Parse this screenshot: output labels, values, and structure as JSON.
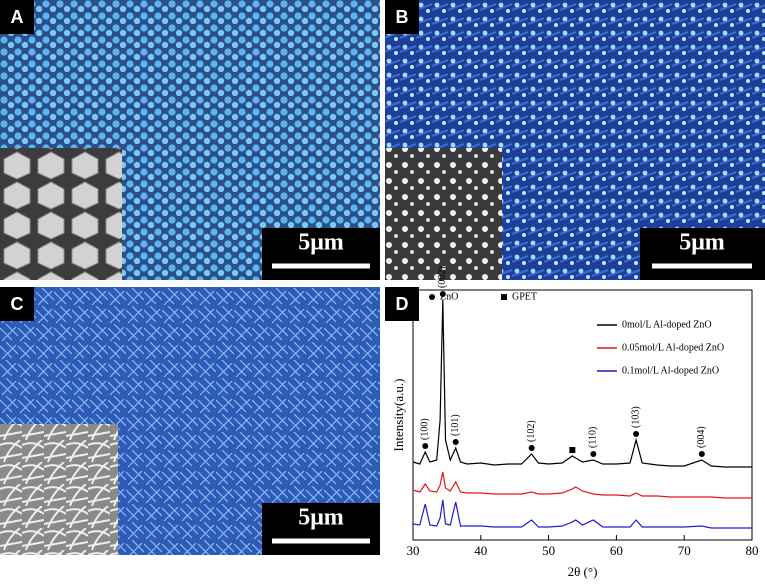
{
  "panels": [
    {
      "label": "A",
      "scale_bar": "5μm"
    },
    {
      "label": "B",
      "scale_bar": "5μm"
    },
    {
      "label": "C",
      "scale_bar": "5μm"
    }
  ],
  "chart_data": {
    "type": "line",
    "label": "D",
    "xlabel": "2θ (°)",
    "ylabel": "Intensity(a.u.)",
    "xlim": [
      30,
      80
    ],
    "xticks": [
      30,
      40,
      50,
      60,
      70,
      80
    ],
    "ylim": [
      0,
      250
    ],
    "x": [
      30,
      31,
      31.8,
      32.5,
      33.5,
      34.0,
      34.4,
      34.8,
      35.5,
      36.3,
      37,
      38,
      40,
      42,
      44,
      46,
      47.5,
      48.5,
      50,
      52,
      53.5,
      54,
      55,
      56.6,
      58,
      60,
      62,
      62.9,
      63.8,
      66,
      68,
      70,
      72.6,
      74,
      76,
      78,
      80
    ],
    "series": [
      {
        "name": "0mol/L Al-doped ZnO",
        "color": "#000000",
        "values": [
          78,
          76,
          88,
          78,
          80,
          120,
          240,
          100,
          80,
          92,
          78,
          76,
          77,
          75,
          76,
          76,
          86,
          77,
          76,
          77,
          84,
          82,
          78,
          80,
          76,
          76,
          77,
          100,
          77,
          75,
          74,
          74,
          80,
          74,
          73,
          73,
          73
        ]
      },
      {
        "name": "0.05mol/L Al-doped ZnO",
        "color": "#e8141c",
        "values": [
          50,
          48,
          56,
          49,
          48,
          55,
          68,
          52,
          49,
          58,
          48,
          47,
          47,
          46,
          46,
          46,
          48,
          46,
          46,
          47,
          51,
          53,
          49,
          46,
          45,
          45,
          44,
          47,
          44,
          44,
          43,
          43,
          43,
          43,
          42,
          42,
          42
        ]
      },
      {
        "name": "0.1mol/L Al-doped ZnO",
        "color": "#1c1ccc",
        "values": [
          16,
          15,
          36,
          15,
          14,
          22,
          40,
          16,
          15,
          38,
          14,
          14,
          14,
          13,
          13,
          13,
          20,
          13,
          13,
          14,
          18,
          20,
          15,
          20,
          13,
          13,
          13,
          20,
          13,
          13,
          13,
          13,
          14,
          12,
          12,
          12,
          12
        ]
      }
    ],
    "marker_legend": [
      {
        "label": "ZnO",
        "marker": "circle"
      },
      {
        "label": "GPET",
        "marker": "square"
      }
    ],
    "annotations": [
      {
        "text": "(100)",
        "x": 31.8,
        "marker": "circle"
      },
      {
        "text": "(002)",
        "x": 34.4,
        "marker": "circle"
      },
      {
        "text": "(101)",
        "x": 36.3,
        "marker": "circle"
      },
      {
        "text": "(102)",
        "x": 47.5,
        "marker": "circle"
      },
      {
        "text": "(110)",
        "x": 56.6,
        "marker": "circle"
      },
      {
        "text": "(103)",
        "x": 62.9,
        "marker": "circle"
      },
      {
        "text": "(004)",
        "x": 72.6,
        "marker": "circle"
      },
      {
        "x": 53.5,
        "marker": "square"
      }
    ]
  }
}
